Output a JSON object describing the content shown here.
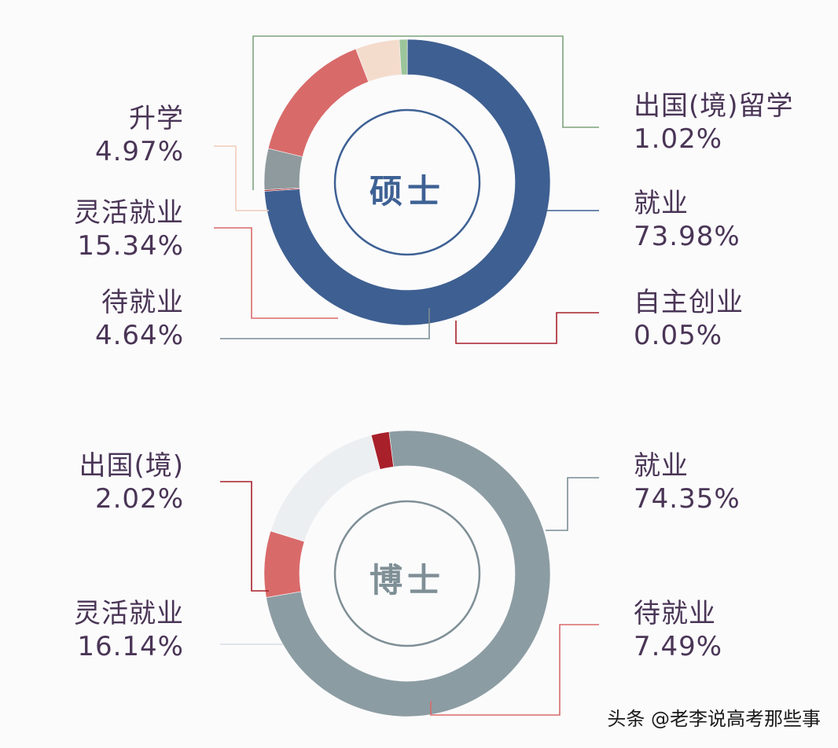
{
  "chart_data": [
    {
      "type": "pie",
      "variant": "donut",
      "center_label": "硕士",
      "center_color": "#3e6194",
      "slices": [
        {
          "label": "出国(境)留学",
          "value": 1.02,
          "value_text": "1.02%",
          "color": "#9cc59b"
        },
        {
          "label": "就业",
          "value": 73.98,
          "value_text": "73.98%",
          "color": "#3e5f91"
        },
        {
          "label": "自主创业",
          "value": 0.05,
          "value_text": "0.05%",
          "color": "#a8202a"
        },
        {
          "label": "待就业",
          "value": 4.64,
          "value_text": "4.64%",
          "color": "#8e9a9d"
        },
        {
          "label": "灵活就业",
          "value": 15.34,
          "value_text": "15.34%",
          "color": "#d96a6a"
        },
        {
          "label": "升学",
          "value": 4.97,
          "value_text": "4.97%",
          "color": "#f4dccd"
        }
      ]
    },
    {
      "type": "pie",
      "variant": "donut",
      "center_label": "博士",
      "center_color": "#7f8f96",
      "slices": [
        {
          "label": "就业",
          "value": 74.35,
          "value_text": "74.35%",
          "color": "#8c9ca3"
        },
        {
          "label": "待就业",
          "value": 7.49,
          "value_text": "7.49%",
          "color": "#d96a6a"
        },
        {
          "label": "灵活就业",
          "value": 16.14,
          "value_text": "16.14%",
          "color": "#eceff2"
        },
        {
          "label": "出国(境)",
          "value": 2.02,
          "value_text": "2.02%",
          "color": "#a8202a"
        }
      ]
    }
  ],
  "watermark": "头条 @老李说高考那些事"
}
